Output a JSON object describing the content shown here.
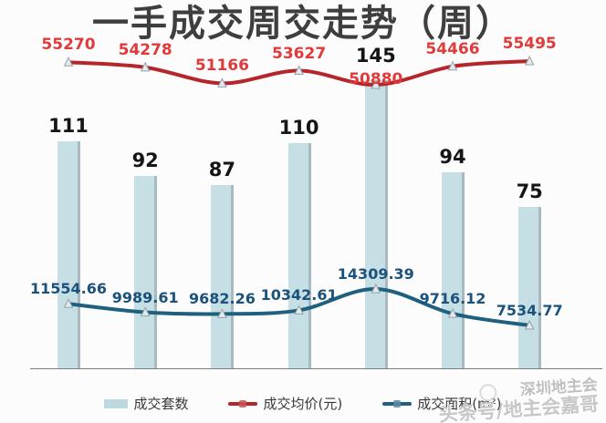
{
  "title": "一手成交周交走势（周）",
  "chart_data": {
    "type": "combo",
    "point_count": 7,
    "x_axis_labels_visible": false,
    "y_axis_labels_visible": false,
    "grid": false,
    "legend_position": "bottom",
    "background_color": "#fcfcfc",
    "series": [
      {
        "name": "成交套数",
        "type": "bar",
        "values": [
          111,
          92,
          87,
          110,
          145,
          94,
          75
        ],
        "color": "#c6dfe5",
        "label_color": "#151515"
      },
      {
        "name": "成交均价(元)",
        "type": "line",
        "values": [
          55270,
          54278,
          51166,
          53627,
          50880,
          54466,
          55495
        ],
        "color": "#b5262c",
        "label_color": "#e03a3a"
      },
      {
        "name": "成交面积(m²)",
        "type": "line",
        "values": [
          11554.66,
          9989.61,
          9682.26,
          10342.61,
          14309.39,
          9716.12,
          7534.77
        ],
        "color": "#20607f",
        "label_color": "#1b527c"
      }
    ]
  },
  "watermark": {
    "line1": "深圳地主会",
    "line2": "头条号/地主会嘉哥"
  }
}
